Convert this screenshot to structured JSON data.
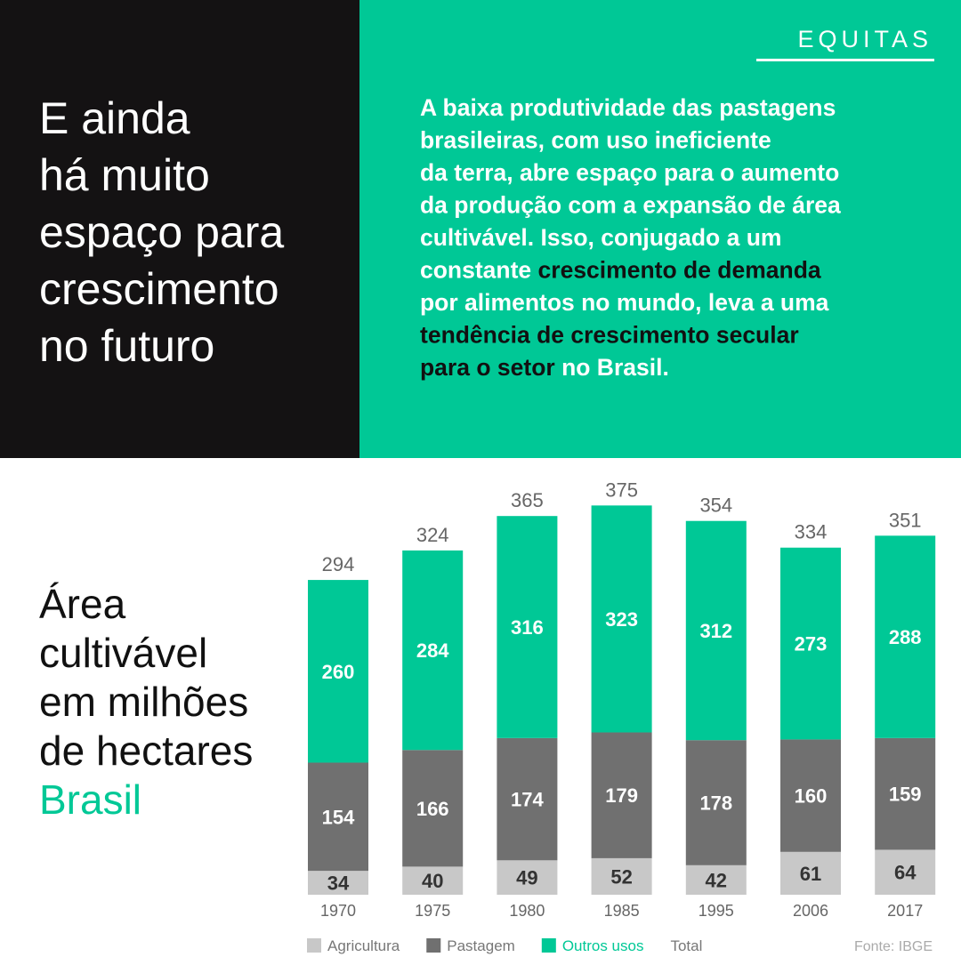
{
  "brand": "EQUITAS",
  "headline": {
    "lines": [
      "E ainda",
      "há muito",
      "espaço para",
      "crescimento",
      "no futuro"
    ]
  },
  "paragraph": {
    "lines": [
      {
        "runs": [
          {
            "text": "A baixa produtividade das pastagens",
            "color": "#ffffff"
          }
        ]
      },
      {
        "runs": [
          {
            "text": "brasileiras, com uso ineficiente",
            "color": "#ffffff"
          }
        ]
      },
      {
        "runs": [
          {
            "text": "da terra, abre espaço para o aumento",
            "color": "#ffffff"
          }
        ]
      },
      {
        "runs": [
          {
            "text": "da produção com a expansão de área",
            "color": "#ffffff"
          }
        ]
      },
      {
        "runs": [
          {
            "text": "cultivável. Isso, conjugado a um",
            "color": "#ffffff"
          }
        ]
      },
      {
        "runs": [
          {
            "text": "constante ",
            "color": "#ffffff"
          },
          {
            "text": "crescimento de demanda",
            "color": "#111111"
          }
        ]
      },
      {
        "runs": [
          {
            "text": "por alimentos no mundo, leva a uma",
            "color": "#ffffff"
          }
        ]
      },
      {
        "runs": [
          {
            "text": "tendência de crescimento secular",
            "color": "#111111"
          }
        ]
      },
      {
        "runs": [
          {
            "text": "para o setor",
            "color": "#111111"
          },
          {
            "text": " no Brasil.",
            "color": "#ffffff"
          }
        ]
      }
    ]
  },
  "chart_data": {
    "type": "stacked_bar",
    "title_lines": [
      {
        "text": "Área",
        "color": "#111111"
      },
      {
        "text": "cultivável",
        "color": "#111111"
      },
      {
        "text": "em milhões",
        "color": "#111111"
      },
      {
        "text": "de hectares",
        "color": "#111111"
      },
      {
        "text": "Brasil",
        "color": "#00c896"
      }
    ],
    "categories": [
      "1970",
      "1975",
      "1980",
      "1985",
      "1995",
      "2006",
      "2017"
    ],
    "series": [
      {
        "name": "Agricultura",
        "color": "#c8c8c8",
        "label_color": "#333333",
        "values": [
          34,
          40,
          49,
          52,
          42,
          61,
          64
        ]
      },
      {
        "name": "Pastagem",
        "color": "#707070",
        "label_color": "#ffffff",
        "values": [
          154,
          166,
          174,
          179,
          178,
          160,
          159
        ]
      },
      {
        "name": "Outros usos",
        "color": "#00c896",
        "label_color": "#ffffff",
        "values": [
          260,
          284,
          316,
          323,
          312,
          273,
          288
        ]
      }
    ],
    "total": {
      "name": "Total",
      "values": [
        294,
        324,
        365,
        375,
        354,
        334,
        351
      ]
    },
    "source": "Fonte: IBGE"
  }
}
